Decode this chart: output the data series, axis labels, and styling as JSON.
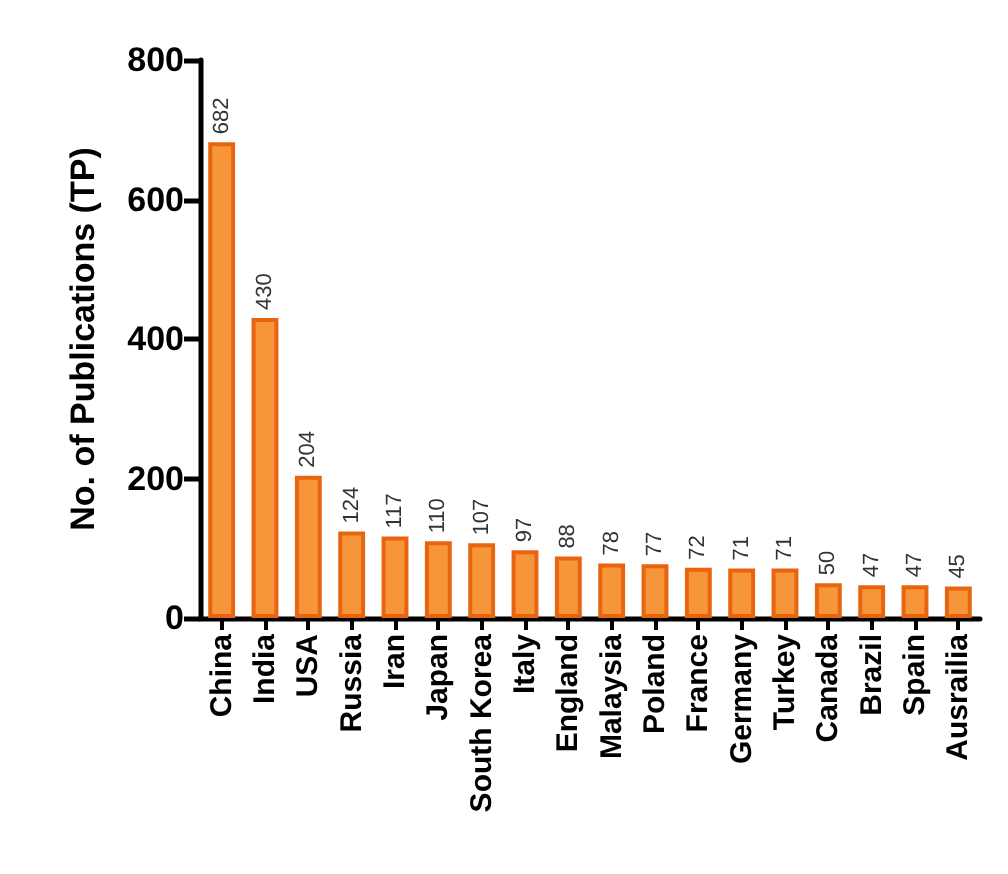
{
  "chart_data": {
    "type": "bar",
    "ylabel": "No. of Publications (TP)",
    "categories": [
      "China",
      "India",
      "USA",
      "Russia",
      "Iran",
      "Japan",
      "South Korea",
      "Italy",
      "England",
      "Malaysia",
      "Poland",
      "France",
      "Germany",
      "Turkey",
      "Canada",
      "Brazil",
      "Spain",
      "Ausrailia"
    ],
    "values": [
      682,
      430,
      204,
      124,
      117,
      110,
      107,
      97,
      88,
      78,
      77,
      72,
      71,
      71,
      50,
      47,
      47,
      45
    ],
    "color": "#f7953a",
    "ylim": [
      0,
      800
    ],
    "yticks": [
      0,
      200,
      400,
      600,
      800
    ],
    "grid": false,
    "data_labels": true
  }
}
